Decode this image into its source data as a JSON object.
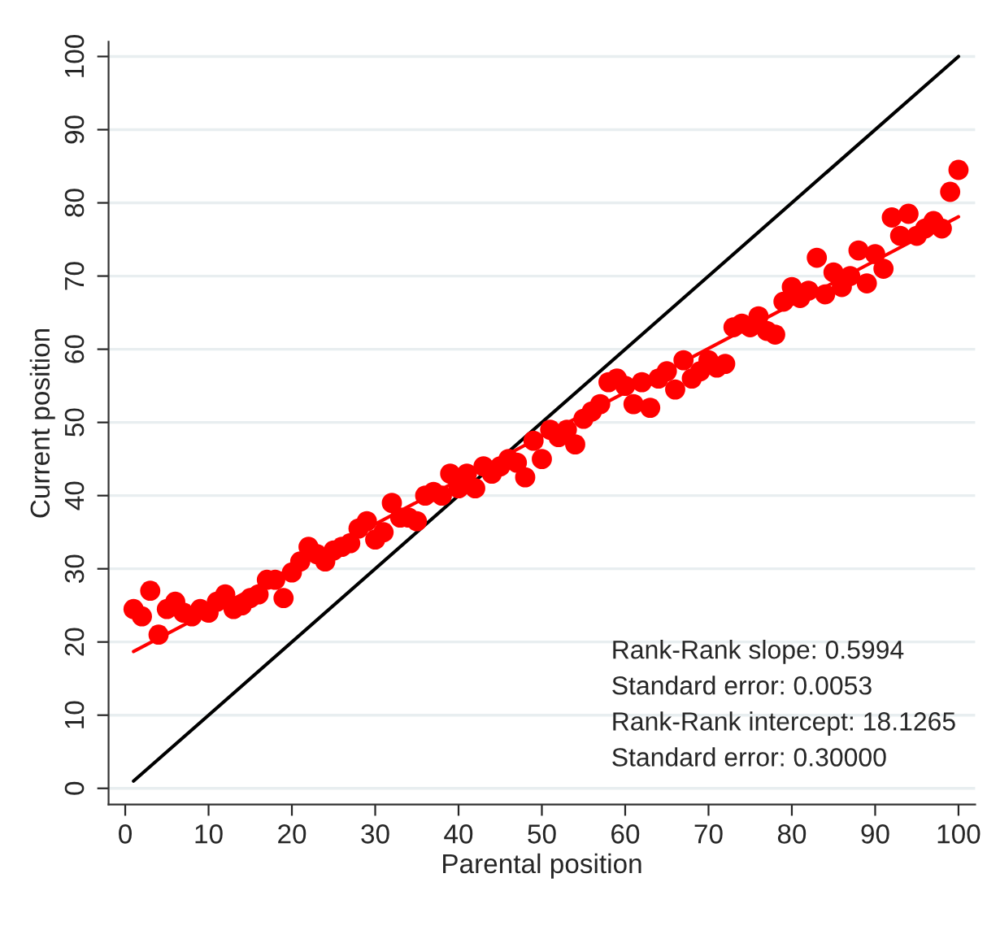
{
  "chart_data": {
    "type": "scatter",
    "xlabel": "Parental position",
    "ylabel": "Current position",
    "xlim": [
      -2,
      102
    ],
    "ylim": [
      -2.2,
      102
    ],
    "xticks": [
      0,
      10,
      20,
      30,
      40,
      50,
      60,
      70,
      80,
      90,
      100
    ],
    "yticks": [
      0,
      10,
      20,
      30,
      40,
      50,
      60,
      70,
      80,
      90,
      100
    ],
    "grid": "y",
    "series": [
      {
        "marker": "circle",
        "color": "#ff0000",
        "x": [
          1,
          2,
          3,
          4,
          5,
          6,
          7,
          8,
          9,
          10,
          11,
          12,
          13,
          14,
          15,
          16,
          17,
          18,
          19,
          20,
          21,
          22,
          23,
          24,
          25,
          26,
          27,
          28,
          29,
          30,
          31,
          32,
          33,
          34,
          35,
          36,
          37,
          38,
          39,
          40,
          41,
          42,
          43,
          44,
          45,
          46,
          47,
          48,
          49,
          50,
          51,
          52,
          53,
          54,
          55,
          56,
          57,
          58,
          59,
          60,
          61,
          62,
          63,
          64,
          65,
          66,
          67,
          68,
          69,
          70,
          71,
          72,
          73,
          74,
          75,
          76,
          77,
          78,
          79,
          80,
          81,
          82,
          83,
          84,
          85,
          86,
          87,
          88,
          89,
          90,
          91,
          92,
          93,
          94,
          95,
          96,
          97,
          98,
          99,
          100
        ],
        "values": [
          24.5,
          23.5,
          27,
          21,
          24.5,
          25.5,
          24,
          23.5,
          24.5,
          24,
          25.5,
          26.5,
          24.5,
          25,
          26,
          26.5,
          28.5,
          28.5,
          26,
          29.5,
          31,
          33,
          32,
          31,
          32.5,
          33,
          33.5,
          35.5,
          36.5,
          34,
          35,
          39,
          37,
          37,
          36.5,
          40,
          40.5,
          40,
          43,
          41,
          43,
          41,
          44,
          43,
          44,
          45,
          44.5,
          42.5,
          47.5,
          45,
          49,
          48,
          49,
          47,
          50.5,
          51.5,
          52.5,
          55.5,
          56,
          55,
          52.5,
          55.5,
          52,
          56,
          57,
          54.5,
          58.5,
          56,
          57,
          58.5,
          57.5,
          58,
          63,
          63.5,
          63,
          64.5,
          62.5,
          62,
          66.5,
          68.5,
          67,
          68,
          72.5,
          67.5,
          70.5,
          68.5,
          70,
          73.5,
          69,
          73,
          71,
          78,
          75.5,
          78.5,
          75.5,
          76.5,
          77.5,
          76.5,
          81.5,
          84.5
        ]
      },
      {
        "type": "line",
        "color": "#ff0000",
        "x": [
          1,
          100
        ],
        "values": [
          18.7,
          78.1
        ],
        "line_style": "solid"
      },
      {
        "type": "line",
        "color": "#000000",
        "x": [
          1,
          100
        ],
        "values": [
          1,
          100
        ],
        "line_style": "solid"
      }
    ],
    "annotations": [
      "Rank-Rank slope: 0.5994",
      "Standard error: 0.0053",
      "Rank-Rank intercept: 18.1265",
      "Standard error: 0.30000"
    ]
  }
}
